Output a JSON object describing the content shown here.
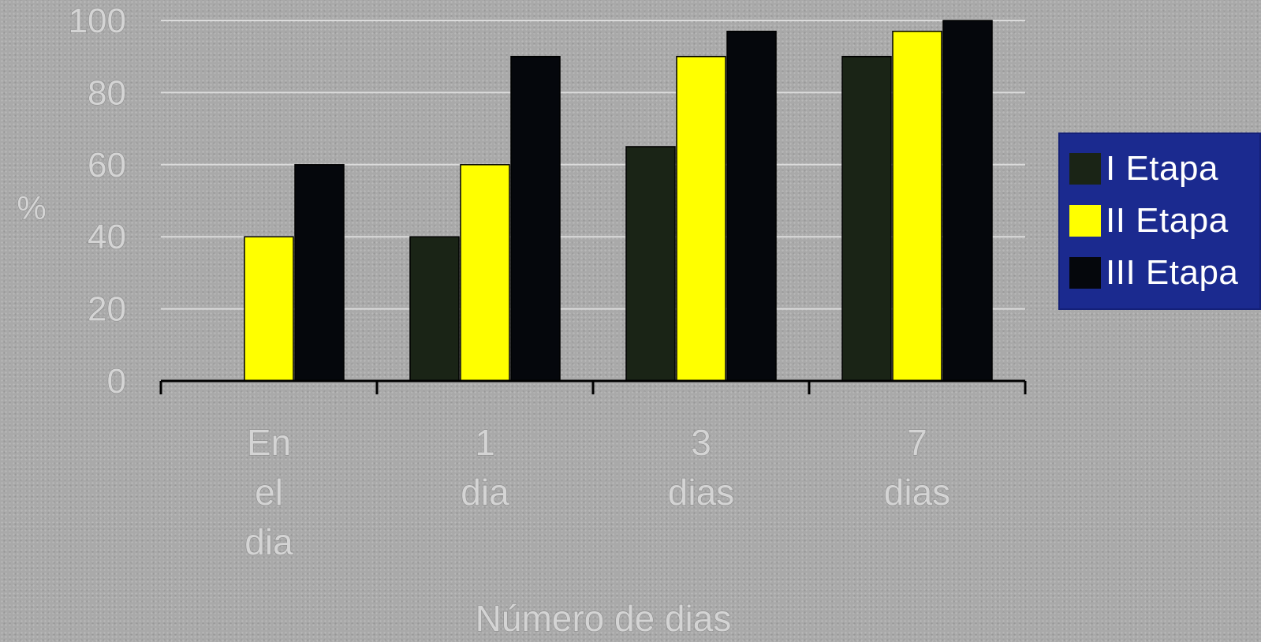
{
  "chart_data": {
    "type": "bar",
    "categories": [
      {
        "lines": [
          "En",
          "el",
          "dia"
        ]
      },
      {
        "lines": [
          "1",
          "dia"
        ]
      },
      {
        "lines": [
          "3",
          "dias"
        ]
      },
      {
        "lines": [
          "7",
          "dias"
        ]
      }
    ],
    "series": [
      {
        "name": "I Etapa",
        "values": [
          0,
          40,
          65,
          90
        ],
        "color": "#1a2416"
      },
      {
        "name": "II Etapa",
        "values": [
          40,
          60,
          90,
          97
        ],
        "color": "#ffff00"
      },
      {
        "name": "III Etapa",
        "values": [
          60,
          90,
          97,
          100
        ],
        "color": "#05070c"
      }
    ],
    "xlabel": "Número de  dias",
    "ylabel": "%",
    "ylim": [
      0,
      100
    ],
    "yticks": [
      "0",
      "20",
      "40",
      "60",
      "80",
      "100"
    ],
    "grid": true,
    "legend": "right"
  }
}
